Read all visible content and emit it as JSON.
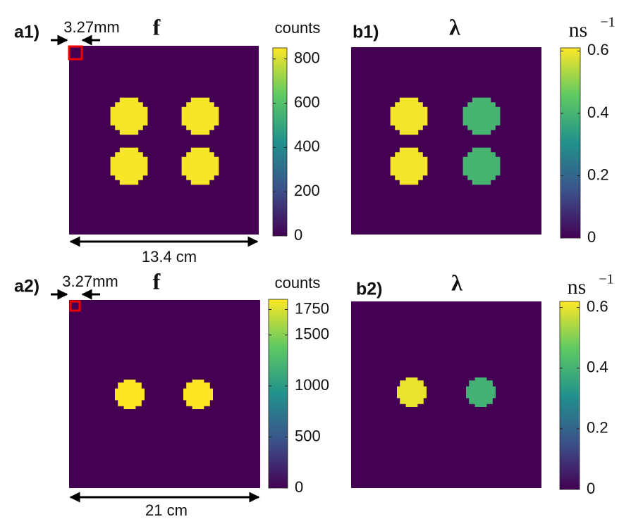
{
  "chart_data": [
    {
      "type": "heatmap",
      "panel": "a1)",
      "title": "f",
      "colorbar_label": "counts",
      "clim": [
        0,
        850
      ],
      "cticks": [
        0,
        200,
        400,
        600,
        800
      ],
      "background": 0,
      "values": [
        840,
        840,
        840,
        840
      ],
      "pixel_label": "3.27mm",
      "extent_label": "13.4 cm"
    },
    {
      "type": "heatmap",
      "panel": "b1)",
      "title": "λ",
      "colorbar_label": "ns",
      "colorbar_exponent": "−1",
      "clim": [
        0,
        0.61
      ],
      "cticks": [
        0,
        0.2,
        0.4,
        0.6
      ],
      "background": 0,
      "values": [
        0.6,
        0.4,
        0.6,
        0.4
      ]
    },
    {
      "type": "heatmap",
      "panel": "a2)",
      "title": "f",
      "colorbar_label": "counts",
      "clim": [
        0,
        1850
      ],
      "cticks": [
        0,
        500,
        1000,
        1500,
        1750
      ],
      "background": 0,
      "values": [
        1850,
        1850
      ],
      "pixel_label": "3.27mm",
      "extent_label": "21 cm"
    },
    {
      "type": "heatmap",
      "panel": "b2)",
      "title": "λ",
      "colorbar_label": "ns",
      "colorbar_exponent": "−1",
      "clim": [
        0,
        0.62
      ],
      "cticks": [
        0,
        0.2,
        0.4,
        0.6
      ],
      "background": 0,
      "values": [
        0.6,
        0.4
      ]
    }
  ]
}
